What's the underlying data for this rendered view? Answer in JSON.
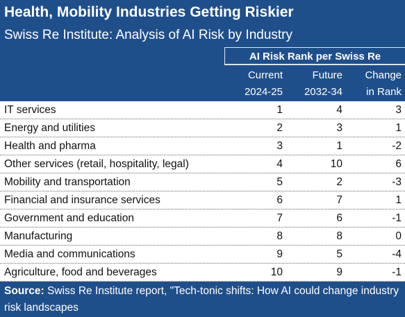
{
  "header": {
    "title": "Health, Mobility Industries Getting Riskier",
    "subtitle": "Swiss Re Institute: Analysis of AI Risk by Industry"
  },
  "table": {
    "group_header": "AI Risk Rank per Swiss Re",
    "columns": [
      [
        "Current",
        "2024-25"
      ],
      [
        "Future",
        "2032-34"
      ],
      [
        "Change",
        "in Rank"
      ]
    ],
    "rows": [
      [
        "IT services",
        1,
        4,
        3
      ],
      [
        "Energy and utilities",
        2,
        3,
        1
      ],
      [
        "Health and pharma",
        3,
        1,
        -2
      ],
      [
        "Other services (retail, hospitality, legal)",
        4,
        10,
        6
      ],
      [
        "Mobility and transportation",
        5,
        2,
        -3
      ],
      [
        "Financial and insurance services",
        6,
        7,
        1
      ],
      [
        "Government and education",
        7,
        6,
        -1
      ],
      [
        "Manufacturing",
        8,
        8,
        0
      ],
      [
        "Media and communications",
        9,
        5,
        -4
      ],
      [
        "Agriculture, food and beverages",
        10,
        9,
        -1
      ]
    ]
  },
  "footer": {
    "label": "Source:",
    "text": "Swiss Re Institute report, \"Tech-tonic shifts: How AI could change industry risk landscapes"
  }
}
